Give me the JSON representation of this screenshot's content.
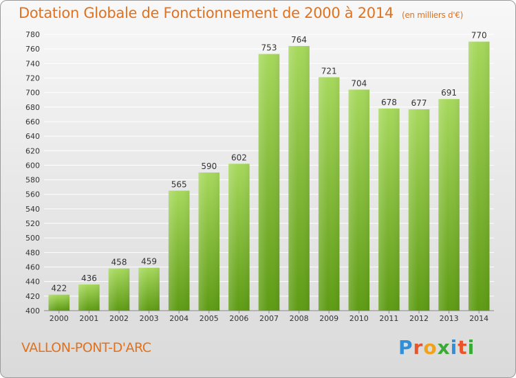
{
  "title": "Dotation Globale de Fonctionnement de 2000 à 2014",
  "unit": "(en milliers d'€)",
  "commune": "VALLON-PONT-D'ARC",
  "logo": "Proxiti",
  "colors": {
    "title": "#e2711d",
    "bar_top": "#a6d85c",
    "bar_bottom": "#5e9b14",
    "grid": "#ffffff"
  },
  "chart_data": {
    "type": "bar",
    "title": "Dotation Globale de Fonctionnement de 2000 à 2014",
    "xlabel": "",
    "ylabel": "",
    "categories": [
      "2000",
      "2001",
      "2002",
      "2003",
      "2004",
      "2005",
      "2006",
      "2007",
      "2008",
      "2009",
      "2010",
      "2011",
      "2012",
      "2013",
      "2014"
    ],
    "values": [
      422,
      436,
      458,
      459,
      565,
      590,
      602,
      753,
      764,
      721,
      704,
      678,
      677,
      691,
      770
    ],
    "ylim": [
      400,
      780
    ],
    "ytick_step": 20,
    "grid": true,
    "data_labels": true
  }
}
